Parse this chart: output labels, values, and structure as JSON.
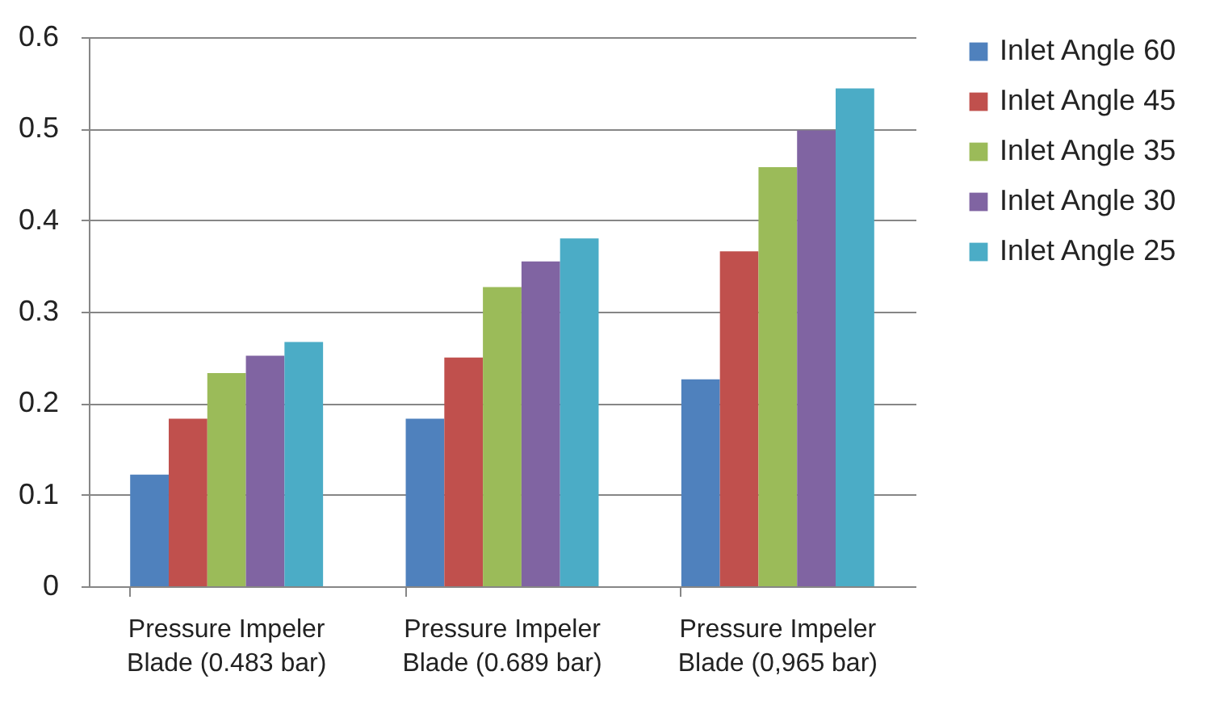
{
  "chart_data": {
    "type": "bar",
    "categories": [
      "Pressure Impeler Blade (0.483 bar)",
      "Pressure Impeler Blade (0.689 bar)",
      "Pressure Impeler Blade (0,965 bar)"
    ],
    "series": [
      {
        "name": "Inlet Angle 60",
        "color": "#4f81bd",
        "values": [
          0.122,
          0.183,
          0.226
        ]
      },
      {
        "name": "Inlet Angle 45",
        "color": "#c0504d",
        "values": [
          0.183,
          0.25,
          0.366
        ]
      },
      {
        "name": "Inlet Angle 35",
        "color": "#9bbb59",
        "values": [
          0.233,
          0.327,
          0.458
        ]
      },
      {
        "name": "Inlet Angle 30",
        "color": "#8064a2",
        "values": [
          0.252,
          0.355,
          0.498
        ]
      },
      {
        "name": "Inlet Angle 25",
        "color": "#4bacc6",
        "values": [
          0.267,
          0.38,
          0.544
        ]
      }
    ],
    "ylim": [
      0,
      0.6
    ],
    "yticks": [
      0,
      0.1,
      0.2,
      0.3,
      0.4,
      0.5,
      0.6
    ],
    "grid": "y",
    "legend": "right"
  }
}
